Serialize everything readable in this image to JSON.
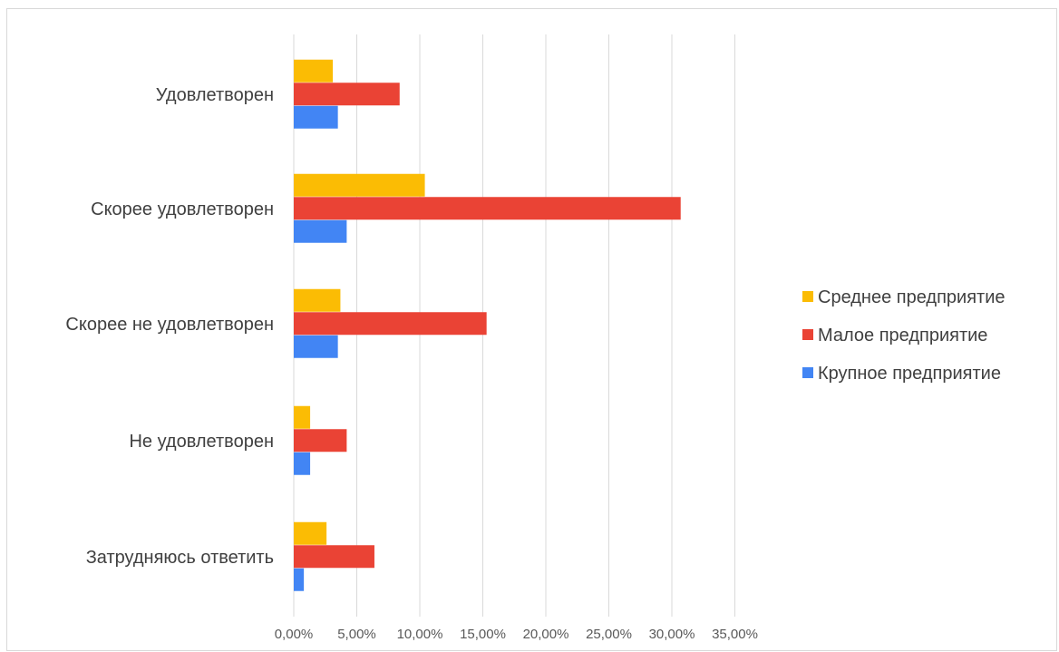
{
  "chart_data": {
    "type": "bar",
    "orientation": "horizontal",
    "categories": [
      "Удовлетворен",
      "Скорее удовлетворен",
      "Скорее не удовлетворен",
      "Не удовлетворен",
      "Затрудняюсь ответить"
    ],
    "series": [
      {
        "name": "Среднее предприятие",
        "color": "#fbbc04",
        "values": [
          3.1,
          10.4,
          3.7,
          1.3,
          2.6
        ]
      },
      {
        "name": "Малое предприятие",
        "color": "#ea4335",
        "values": [
          8.4,
          30.7,
          15.3,
          4.2,
          6.4
        ]
      },
      {
        "name": "Крупное предприятие",
        "color": "#4285f4",
        "values": [
          3.5,
          4.2,
          3.5,
          1.3,
          0.8
        ]
      }
    ],
    "xlim": [
      0,
      35
    ],
    "x_ticks": [
      "0,00%",
      "5,00%",
      "10,00%",
      "15,00%",
      "20,00%",
      "25,00%",
      "30,00%",
      "35,00%"
    ],
    "grid": "vertical",
    "legend_position": "right",
    "title": "",
    "xlabel": "",
    "ylabel": ""
  }
}
